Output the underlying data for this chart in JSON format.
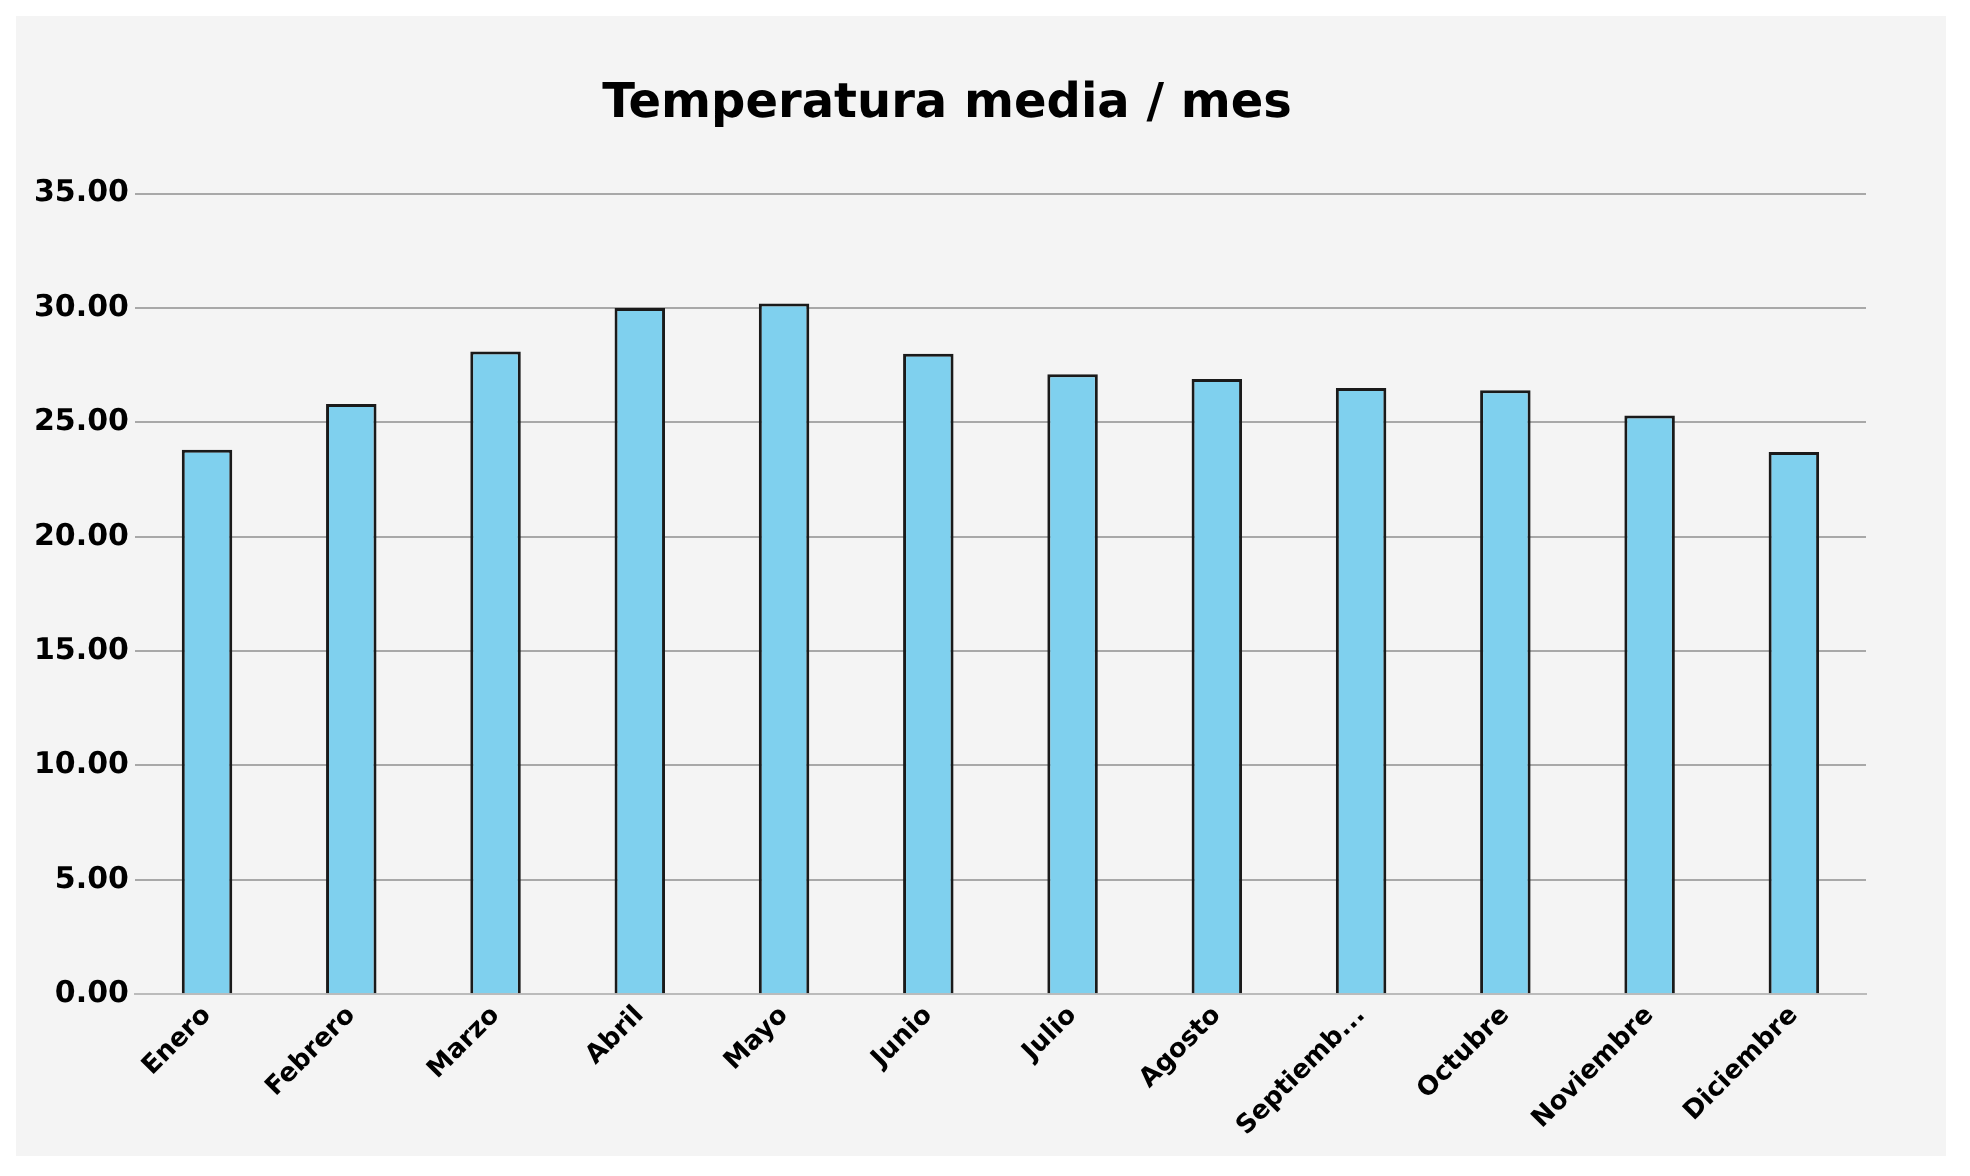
{
  "chart_data": {
    "type": "bar",
    "title": "Temperatura media / mes",
    "categories": [
      "Enero",
      "Febrero",
      "Marzo",
      "Abril",
      "Mayo",
      "Junio",
      "Julio",
      "Agosto",
      "Septiemb...",
      "Octubre",
      "Noviembre",
      "Diciembre"
    ],
    "values": [
      23.8,
      25.8,
      28.1,
      30.0,
      30.2,
      28.0,
      27.1,
      26.9,
      26.5,
      26.4,
      25.3,
      23.7
    ],
    "color": "#7fd0ee",
    "ylim": [
      0,
      35
    ],
    "yticks": [
      {
        "value": 0,
        "label": "0.00"
      },
      {
        "value": 5,
        "label": "5.00"
      },
      {
        "value": 10,
        "label": "10.00"
      },
      {
        "value": 15,
        "label": "15.00"
      },
      {
        "value": 20,
        "label": "20.00"
      },
      {
        "value": 25,
        "label": "25.00"
      },
      {
        "value": 30,
        "label": "30.00"
      },
      {
        "value": 35,
        "label": "35.00"
      }
    ],
    "grid": "y"
  }
}
